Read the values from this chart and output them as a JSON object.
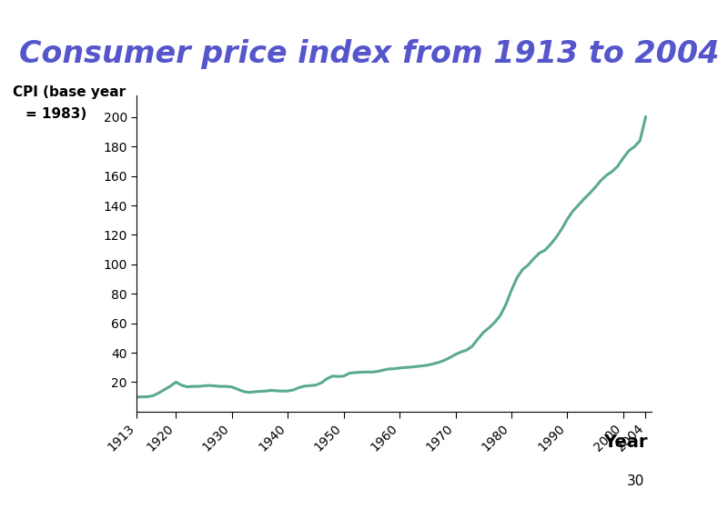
{
  "title": "Consumer price index from 1913 to 2004",
  "title_color": "#5555CC",
  "title_fontsize": 24,
  "title_fontweight": "bold",
  "ylabel_line1": "CPI (base year",
  "ylabel_line2": "= 1983)",
  "ylabel_fontsize": 11,
  "ylabel_fontweight": "bold",
  "xlabel": "Year",
  "xlabel_fontsize": 14,
  "xlabel_fontweight": "bold",
  "line_color": "#5BAA90",
  "line_width": 2.2,
  "bg_title_top": "#88BBA8",
  "bg_title_bottom": "#99CCAA",
  "bg_chart": "#FFFFFF",
  "bg_main": "#FFFFFF",
  "bg_footer": "#C8DCE8",
  "footer_text": "30",
  "yticks": [
    20,
    40,
    60,
    80,
    100,
    120,
    140,
    160,
    180,
    200
  ],
  "xtick_labels": [
    "1913",
    "1920",
    "1930",
    "1940",
    "1950",
    "1960",
    "1970",
    "1980",
    "1990",
    "2000",
    "2004"
  ],
  "xtick_positions": [
    1913,
    1920,
    1930,
    1940,
    1950,
    1960,
    1970,
    1980,
    1990,
    2000,
    2004
  ],
  "cpi_data": {
    "1913": 9.9,
    "1914": 10.0,
    "1915": 10.1,
    "1916": 10.9,
    "1917": 12.8,
    "1918": 15.1,
    "1919": 17.3,
    "1920": 20.0,
    "1921": 17.9,
    "1922": 16.8,
    "1923": 17.1,
    "1924": 17.1,
    "1925": 17.5,
    "1926": 17.7,
    "1927": 17.4,
    "1928": 17.1,
    "1929": 17.1,
    "1930": 16.7,
    "1931": 15.2,
    "1932": 13.7,
    "1933": 13.0,
    "1934": 13.4,
    "1935": 13.7,
    "1936": 13.9,
    "1937": 14.4,
    "1938": 14.1,
    "1939": 13.9,
    "1940": 14.0,
    "1941": 14.7,
    "1942": 16.3,
    "1943": 17.3,
    "1944": 17.6,
    "1945": 18.0,
    "1946": 19.5,
    "1947": 22.3,
    "1948": 24.1,
    "1949": 23.8,
    "1950": 24.1,
    "1951": 26.0,
    "1952": 26.5,
    "1953": 26.7,
    "1954": 26.9,
    "1955": 26.8,
    "1956": 27.2,
    "1957": 28.1,
    "1958": 28.9,
    "1959": 29.1,
    "1960": 29.6,
    "1961": 29.9,
    "1962": 30.2,
    "1963": 30.6,
    "1964": 31.0,
    "1965": 31.5,
    "1966": 32.4,
    "1967": 33.4,
    "1968": 34.8,
    "1969": 36.7,
    "1970": 38.8,
    "1971": 40.5,
    "1972": 41.8,
    "1973": 44.4,
    "1974": 49.3,
    "1975": 53.8,
    "1976": 56.9,
    "1977": 60.6,
    "1978": 65.2,
    "1979": 72.6,
    "1980": 82.4,
    "1981": 90.9,
    "1982": 96.5,
    "1983": 99.6,
    "1984": 103.9,
    "1985": 107.6,
    "1986": 109.6,
    "1987": 113.6,
    "1988": 118.3,
    "1989": 124.0,
    "1990": 130.7,
    "1991": 136.2,
    "1992": 140.3,
    "1993": 144.5,
    "1994": 148.2,
    "1995": 152.4,
    "1996": 156.9,
    "1997": 160.5,
    "1998": 163.0,
    "1999": 166.6,
    "2000": 172.2,
    "2001": 177.1,
    "2002": 179.9,
    "2003": 184.0,
    "2004": 200.0
  }
}
